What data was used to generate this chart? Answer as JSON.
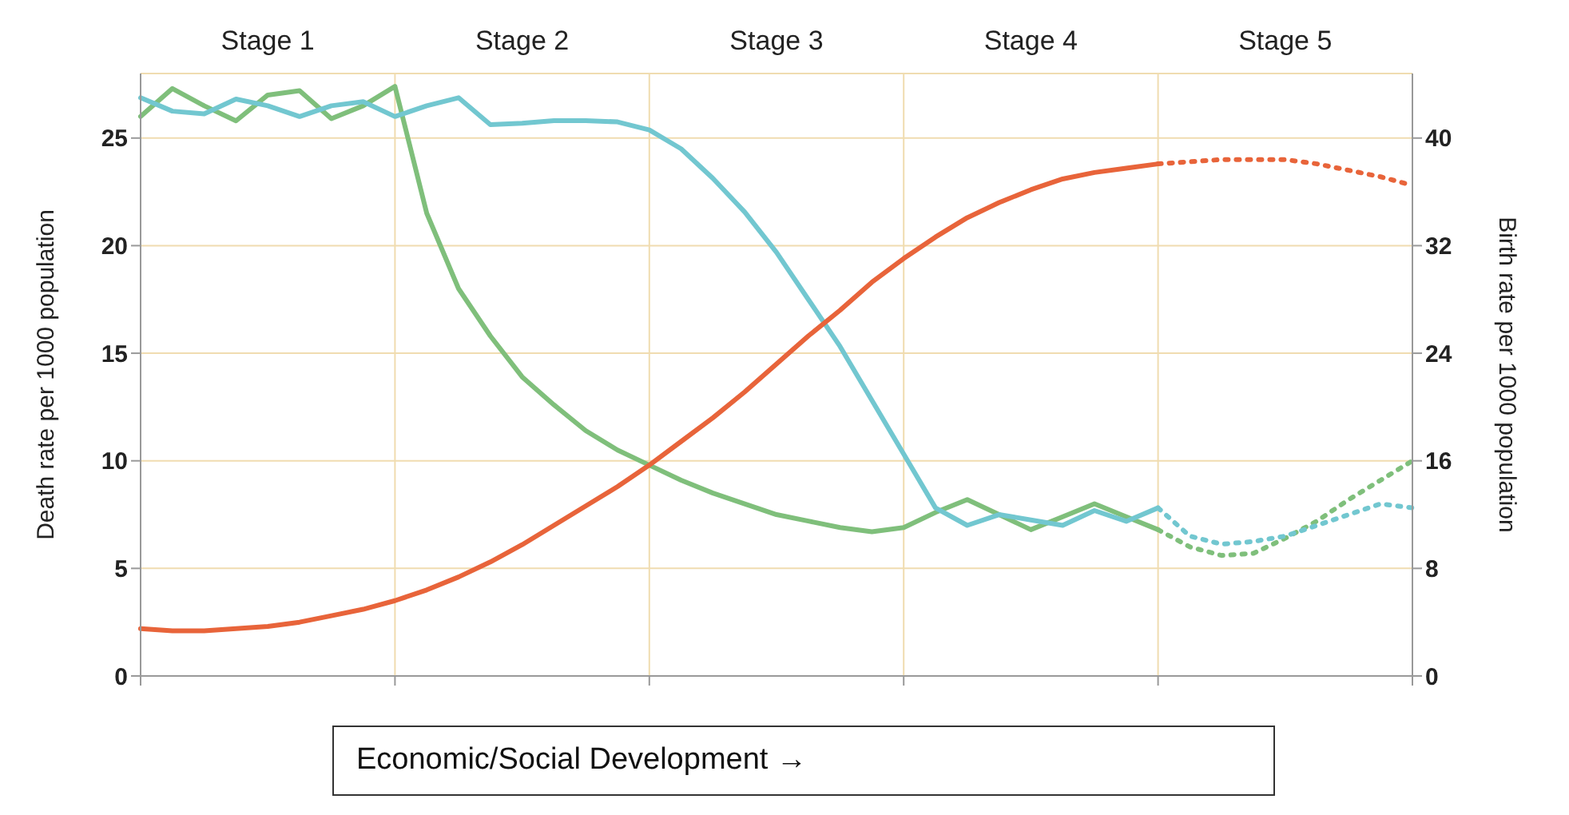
{
  "chart_data": {
    "type": "line",
    "xlabel": "Economic/Social Development →",
    "ylabel": "Death rate per 1000 population",
    "y2label": "Birth rate per 1000 population",
    "annotations": [
      "Stage 1",
      "Stage 2",
      "Stage 3",
      "Stage 4",
      "Stage 5"
    ],
    "categories": [
      null,
      null,
      null,
      null,
      null,
      null,
      null,
      null,
      null,
      null,
      null,
      null,
      null,
      null,
      null,
      null,
      null,
      null,
      null,
      null,
      null,
      null,
      null,
      null,
      null,
      null,
      null,
      null,
      null,
      null,
      null,
      null,
      null,
      null,
      null,
      null,
      null,
      null,
      null,
      null,
      null
    ],
    "ylim": [
      0,
      28
    ],
    "yticks": [
      0,
      5,
      10,
      15,
      20,
      25
    ],
    "y2lim": [
      0,
      44.8
    ],
    "y2ticks": [
      0,
      8,
      16,
      24,
      32,
      40
    ],
    "grid": true,
    "legend": false,
    "marker": "none",
    "series": [
      {
        "color": "#7fbf7b",
        "line_style": "solid",
        "values": [
          26,
          27.3,
          26.5,
          25.8,
          27,
          27.2,
          25.9,
          26.5,
          27.4,
          21.5,
          18,
          15.8,
          13.9,
          12.6,
          11.4,
          10.5,
          9.8,
          9.1,
          8.5,
          8,
          7.5,
          7.2,
          6.9,
          6.7,
          6.9,
          7.6,
          8.2,
          7.5,
          6.8,
          7.4,
          8.0,
          7.4,
          6.8,
          null,
          null,
          null,
          null,
          null,
          null,
          null,
          null
        ]
      },
      {
        "color": "#7fbf7b",
        "line_style": "dotted",
        "values": [
          null,
          null,
          null,
          null,
          null,
          null,
          null,
          null,
          null,
          null,
          null,
          null,
          null,
          null,
          null,
          null,
          null,
          null,
          null,
          null,
          null,
          null,
          null,
          null,
          null,
          null,
          null,
          null,
          null,
          null,
          null,
          null,
          6.8,
          6.0,
          5.6,
          5.7,
          6.4,
          7.2,
          8.2,
          9.1,
          10
        ]
      },
      {
        "color": "#72c7d0",
        "line_style": "solid",
        "axis": "y2",
        "values": [
          43,
          42,
          41.8,
          42.9,
          42.4,
          41.6,
          42.4,
          42.7,
          41.6,
          42.4,
          43,
          41,
          41.1,
          41.3,
          41.3,
          41.2,
          40.6,
          39.2,
          37,
          34.5,
          31.5,
          28,
          24.5,
          20.5,
          16.5,
          12.5,
          11.2,
          12,
          11.6,
          11.2,
          12.3,
          11.5,
          12.5,
          null,
          null,
          null,
          null,
          null,
          null,
          null,
          null
        ]
      },
      {
        "color": "#72c7d0",
        "line_style": "dotted",
        "axis": "y2",
        "values": [
          null,
          null,
          null,
          null,
          null,
          null,
          null,
          null,
          null,
          null,
          null,
          null,
          null,
          null,
          null,
          null,
          null,
          null,
          null,
          null,
          null,
          null,
          null,
          null,
          null,
          null,
          null,
          null,
          null,
          null,
          null,
          null,
          12.5,
          10.4,
          9.8,
          10,
          10.4,
          11.2,
          12,
          12.8,
          12.5
        ]
      },
      {
        "color": "#e8643a",
        "line_style": "solid",
        "values": [
          2.2,
          2.1,
          2.1,
          2.2,
          2.3,
          2.5,
          2.8,
          3.1,
          3.5,
          4.0,
          4.6,
          5.3,
          6.1,
          7.0,
          7.9,
          8.8,
          9.8,
          10.9,
          12.0,
          13.2,
          14.5,
          15.8,
          17.0,
          18.3,
          19.4,
          20.4,
          21.3,
          22.0,
          22.6,
          23.1,
          23.4,
          23.6,
          23.8,
          null,
          null,
          null,
          null,
          null,
          null,
          null,
          null
        ]
      },
      {
        "color": "#e8643a",
        "line_style": "dotted",
        "values": [
          null,
          null,
          null,
          null,
          null,
          null,
          null,
          null,
          null,
          null,
          null,
          null,
          null,
          null,
          null,
          null,
          null,
          null,
          null,
          null,
          null,
          null,
          null,
          null,
          null,
          null,
          null,
          null,
          null,
          null,
          null,
          null,
          23.8,
          23.9,
          24,
          24,
          24,
          23.8,
          23.5,
          23.2,
          22.8
        ]
      }
    ]
  }
}
